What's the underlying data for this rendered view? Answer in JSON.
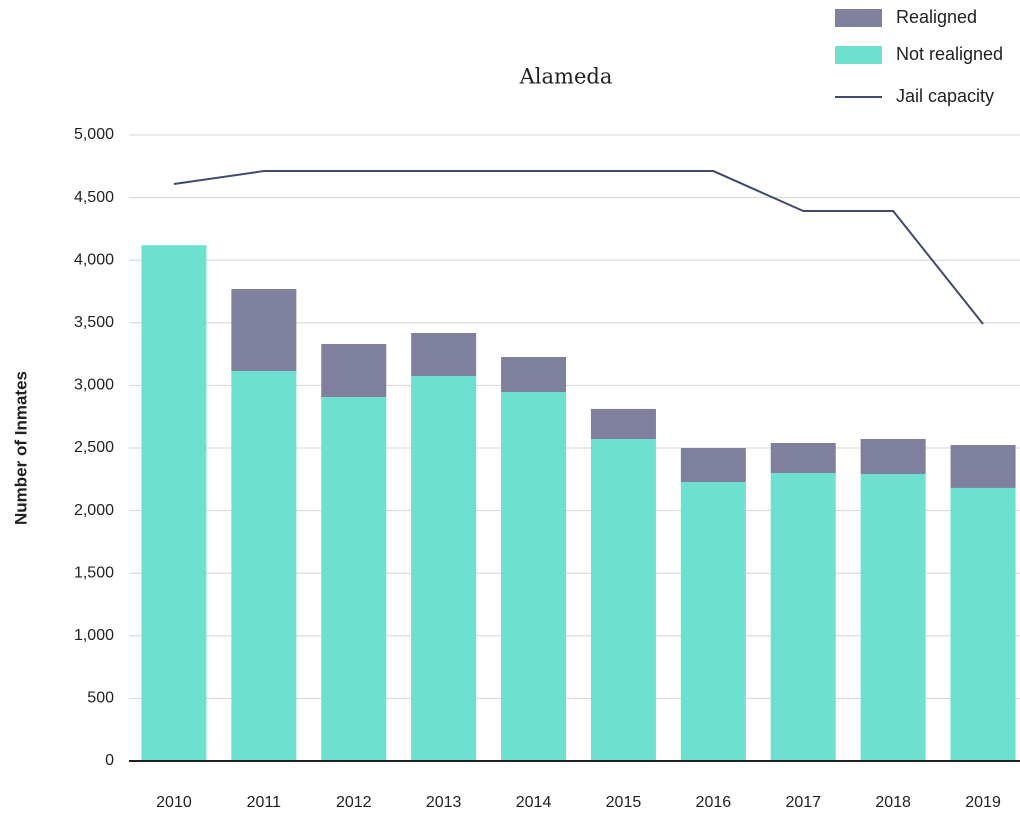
{
  "chart_data": {
    "type": "bar",
    "stacked": true,
    "title": "Alameda",
    "y_label": "Number of Inmates",
    "categories": [
      "2010",
      "2011",
      "2012",
      "2013",
      "2014",
      "2015",
      "2016",
      "2017",
      "2018",
      "2019"
    ],
    "series": [
      {
        "name": "Not realigned",
        "color": "#6ee0d0",
        "type": "bar",
        "values": [
          4120,
          3115,
          2907,
          3075,
          2947,
          2572,
          2228,
          2300,
          2292,
          2181
        ]
      },
      {
        "name": "Realigned",
        "color": "#7f7f9e",
        "type": "bar",
        "values": [
          0,
          655,
          424,
          344,
          280,
          240,
          272,
          240,
          280,
          343
        ]
      },
      {
        "name": "Jail capacity",
        "color": "#3f4a6e",
        "type": "line",
        "values": [
          4609,
          4712,
          4712,
          4712,
          4712,
          4712,
          4712,
          4393,
          4393,
          3490
        ]
      }
    ],
    "ylim": [
      0,
      5000
    ],
    "yticks": [
      0,
      500,
      {
        "value": 1000,
        "label": "1,000"
      },
      {
        "value": 1500,
        "label": "1,500"
      },
      {
        "value": 2000,
        "label": "2,000"
      },
      {
        "value": 2500,
        "label": "2,500"
      },
      {
        "value": 3000,
        "label": "3,000"
      },
      {
        "value": 3500,
        "label": "3,500"
      },
      {
        "value": 4000,
        "label": "4,000"
      },
      {
        "value": 4500,
        "label": "4,500"
      },
      {
        "value": 5000,
        "label": "5,000"
      }
    ],
    "grid": true,
    "legend": "top-right"
  }
}
